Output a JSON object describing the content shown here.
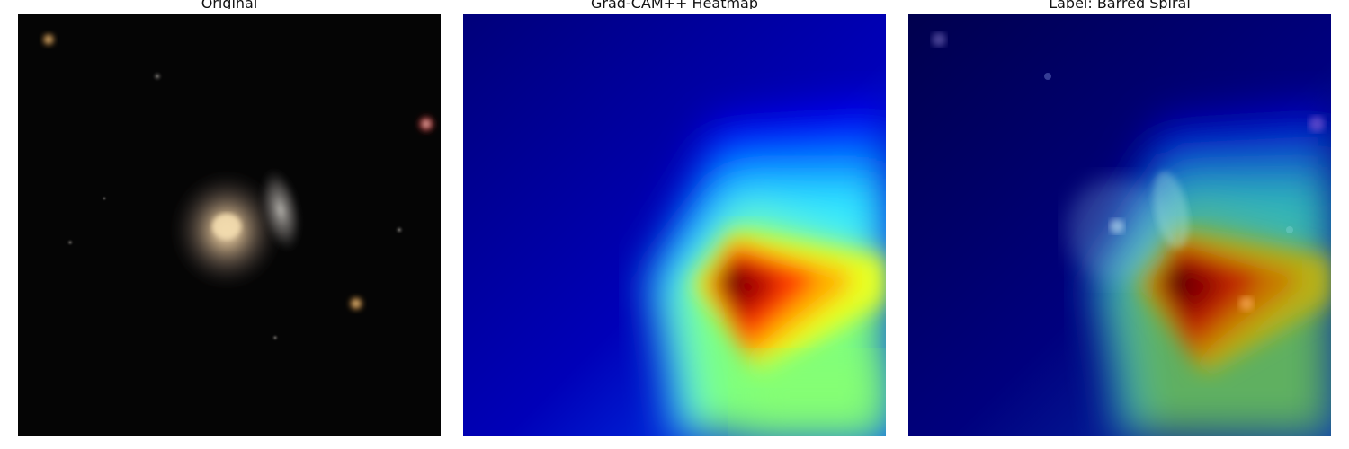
{
  "panels": [
    {
      "title": "Original"
    },
    {
      "title": "Grad-CAM++ Heatmap"
    },
    {
      "title": "Label: Barred Spiral"
    }
  ]
}
